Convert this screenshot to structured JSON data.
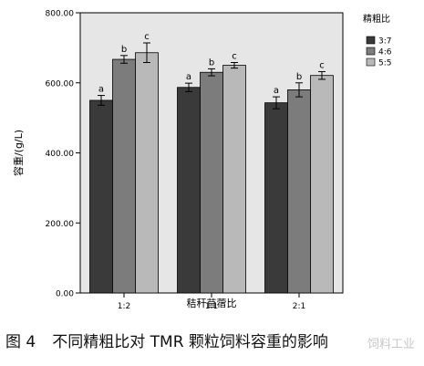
{
  "chart_data": {
    "type": "bar",
    "xlabel": "秸秆苜蓿比",
    "ylabel": "容重/(g/L)",
    "ylim": [
      0,
      800
    ],
    "yticks": [
      "0.00",
      "200.00",
      "400.00",
      "600.00",
      "800.00"
    ],
    "categories": [
      "1:2",
      "1:1",
      "2:1"
    ],
    "legend_title": "精粗比",
    "legend_position": "right",
    "series": [
      {
        "name": "3:7",
        "color": "#3a3a3a",
        "values": [
          550,
          587,
          543
        ],
        "errors": [
          14,
          12,
          17
        ],
        "labels": [
          "a",
          "a",
          "a"
        ]
      },
      {
        "name": "4:6",
        "color": "#7c7c7c",
        "values": [
          667,
          630,
          580
        ],
        "errors": [
          11,
          10,
          20
        ],
        "labels": [
          "b",
          "b",
          "b"
        ]
      },
      {
        "name": "5:5",
        "color": "#b9b9b9",
        "values": [
          686,
          650,
          621
        ],
        "errors": [
          28,
          8,
          11
        ],
        "labels": [
          "c",
          "c",
          "c"
        ]
      }
    ],
    "grid": false
  },
  "caption": {
    "figure_number": "图 4",
    "text": "不同精粗比对 TMR 颗粒饲料容重的影响"
  },
  "watermark": "饲料工业"
}
